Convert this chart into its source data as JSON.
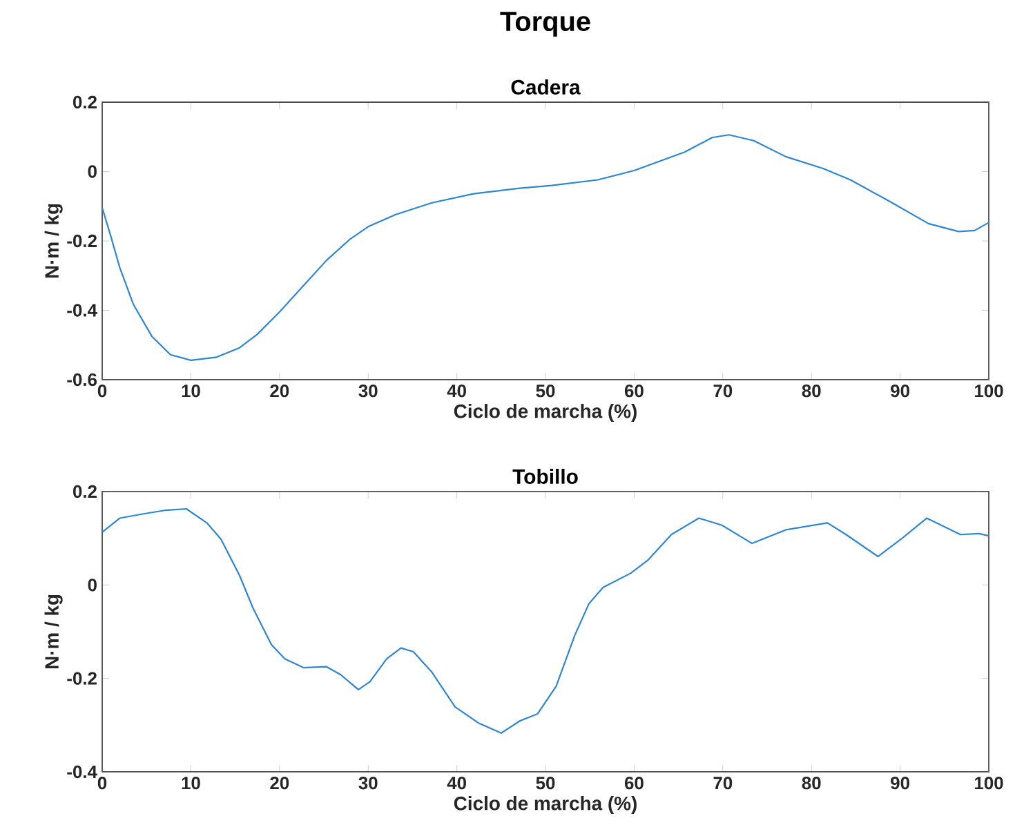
{
  "chart_data": [
    {
      "type": "line",
      "title": "Torque",
      "subtitle": "Cadera",
      "xlabel": "Ciclo de marcha (%)",
      "ylabel": "N·m / kg",
      "xlim": [
        0,
        100
      ],
      "ylim": [
        -0.6,
        0.2
      ],
      "xticks": [
        0,
        10,
        20,
        30,
        40,
        50,
        60,
        70,
        80,
        90,
        100
      ],
      "yticks": [
        -0.6,
        -0.4,
        -0.2,
        0,
        0.2
      ],
      "series": [
        {
          "color": "#2e86d0",
          "x": [
            0,
            0.93,
            1.97,
            3.5,
            5.6,
            7.7,
            10,
            12.9,
            15.5,
            17.5,
            20.1,
            22.7,
            25.3,
            27.9,
            30,
            33.1,
            37.2,
            41.9,
            47.1,
            50.7,
            55.9,
            60,
            65.7,
            68.8,
            70.7,
            73.5,
            77.1,
            81.3,
            84.4,
            89.1,
            93.2,
            96.6,
            98.4,
            100
          ],
          "values": [
            -0.104,
            -0.183,
            -0.276,
            -0.382,
            -0.475,
            -0.528,
            -0.544,
            -0.535,
            -0.508,
            -0.469,
            -0.402,
            -0.329,
            -0.256,
            -0.196,
            -0.159,
            -0.124,
            -0.09,
            -0.064,
            -0.048,
            -0.04,
            -0.024,
            0.003,
            0.056,
            0.098,
            0.106,
            0.089,
            0.043,
            0.009,
            -0.024,
            -0.09,
            -0.15,
            -0.173,
            -0.17,
            -0.147
          ]
        }
      ]
    },
    {
      "type": "line",
      "title": "Tobillo",
      "xlabel": "Ciclo de marcha (%)",
      "ylabel": "N·m / kg",
      "xlim": [
        0,
        100
      ],
      "ylim": [
        -0.4,
        0.2
      ],
      "xticks": [
        0,
        10,
        20,
        30,
        40,
        50,
        60,
        70,
        80,
        90,
        100
      ],
      "yticks": [
        -0.4,
        -0.2,
        0,
        0.2
      ],
      "series": [
        {
          "color": "#2e86d0",
          "x": [
            0,
            1.97,
            4.56,
            7.15,
            9.49,
            11.8,
            13.4,
            15.5,
            17,
            19.1,
            20.6,
            22.7,
            25.3,
            26.9,
            28.9,
            30.2,
            32.1,
            33.7,
            35.1,
            37.2,
            39.8,
            42.4,
            45,
            47.1,
            49.1,
            51.2,
            53.3,
            54.9,
            56.5,
            59.6,
            61.6,
            64.2,
            67.3,
            69.9,
            73.3,
            77.1,
            81.8,
            83.9,
            87.5,
            90.1,
            93,
            96.8,
            98.9,
            100
          ],
          "values": [
            0.113,
            0.143,
            0.152,
            0.16,
            0.163,
            0.133,
            0.098,
            0.02,
            -0.049,
            -0.128,
            -0.158,
            -0.177,
            -0.175,
            -0.192,
            -0.224,
            -0.207,
            -0.158,
            -0.135,
            -0.143,
            -0.187,
            -0.261,
            -0.295,
            -0.317,
            -0.291,
            -0.276,
            -0.217,
            -0.108,
            -0.04,
            -0.005,
            0.025,
            0.054,
            0.108,
            0.143,
            0.128,
            0.089,
            0.118,
            0.133,
            0.108,
            0.061,
            0.098,
            0.143,
            0.108,
            0.11,
            0.105
          ]
        }
      ]
    }
  ]
}
